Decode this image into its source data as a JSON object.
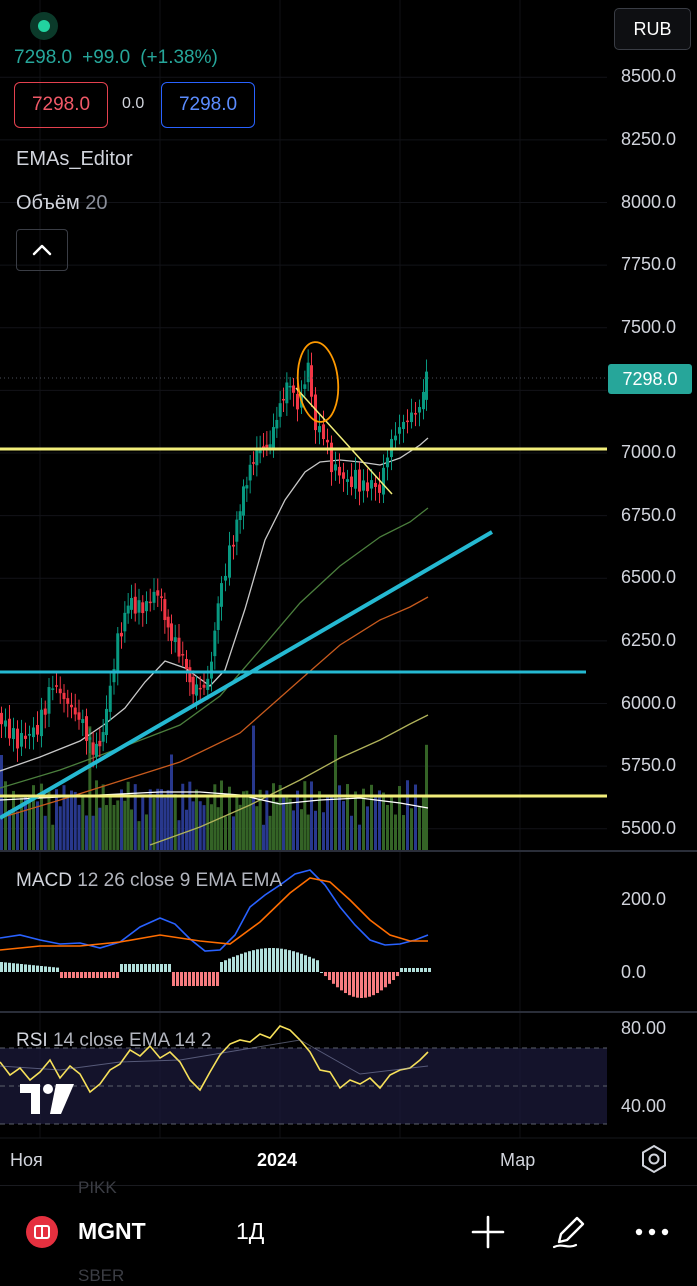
{
  "header": {
    "last_price": "7298.0",
    "change": "+99.0",
    "change_pct": "(+1.38%)",
    "sell_price": "7298.0",
    "spread": "0.0",
    "buy_price": "7298.0",
    "indicator_emas": "EMAs_Editor",
    "indicator_volume": "Объём",
    "indicator_volume_param": "20",
    "currency": "RUB"
  },
  "price_axis": {
    "ticks": [
      "8500.0",
      "8250.0",
      "8000.0",
      "7750.0",
      "7500.0",
      "7000.0",
      "6750.0",
      "6500.0",
      "6250.0",
      "6000.0",
      "5750.0",
      "5500.0"
    ],
    "current_price_tag": "7298.0"
  },
  "macd": {
    "label": "MACD",
    "params": "12 26 close 9 EMA EMA",
    "ticks": [
      "200.0",
      "0.0"
    ]
  },
  "rsi": {
    "label": "RSI",
    "params": "14 close EMA 14 2",
    "ticks": [
      "80.00",
      "40.00"
    ]
  },
  "time_axis": {
    "labels": [
      "Ноя",
      "2024",
      "Мар"
    ]
  },
  "toolbar": {
    "symbol": "MGNT",
    "interval": "1Д",
    "ghost_above": "PIKK",
    "ghost_below": "SBER"
  },
  "colors": {
    "up": "#26a69a",
    "candle_up": "#089981",
    "candle_down": "#f23645",
    "level_yellow": "#f2ee7a",
    "trend_cyan": "#25b9d2",
    "macd_line": "#2962ff",
    "signal_line": "#ff6d00",
    "rsi_line": "#f7e15a"
  },
  "icons": [
    "live-dot",
    "chevron-up-icon",
    "tradingview-logo",
    "settings-icon",
    "plus-icon",
    "pencil-icon",
    "more-icon"
  ]
}
